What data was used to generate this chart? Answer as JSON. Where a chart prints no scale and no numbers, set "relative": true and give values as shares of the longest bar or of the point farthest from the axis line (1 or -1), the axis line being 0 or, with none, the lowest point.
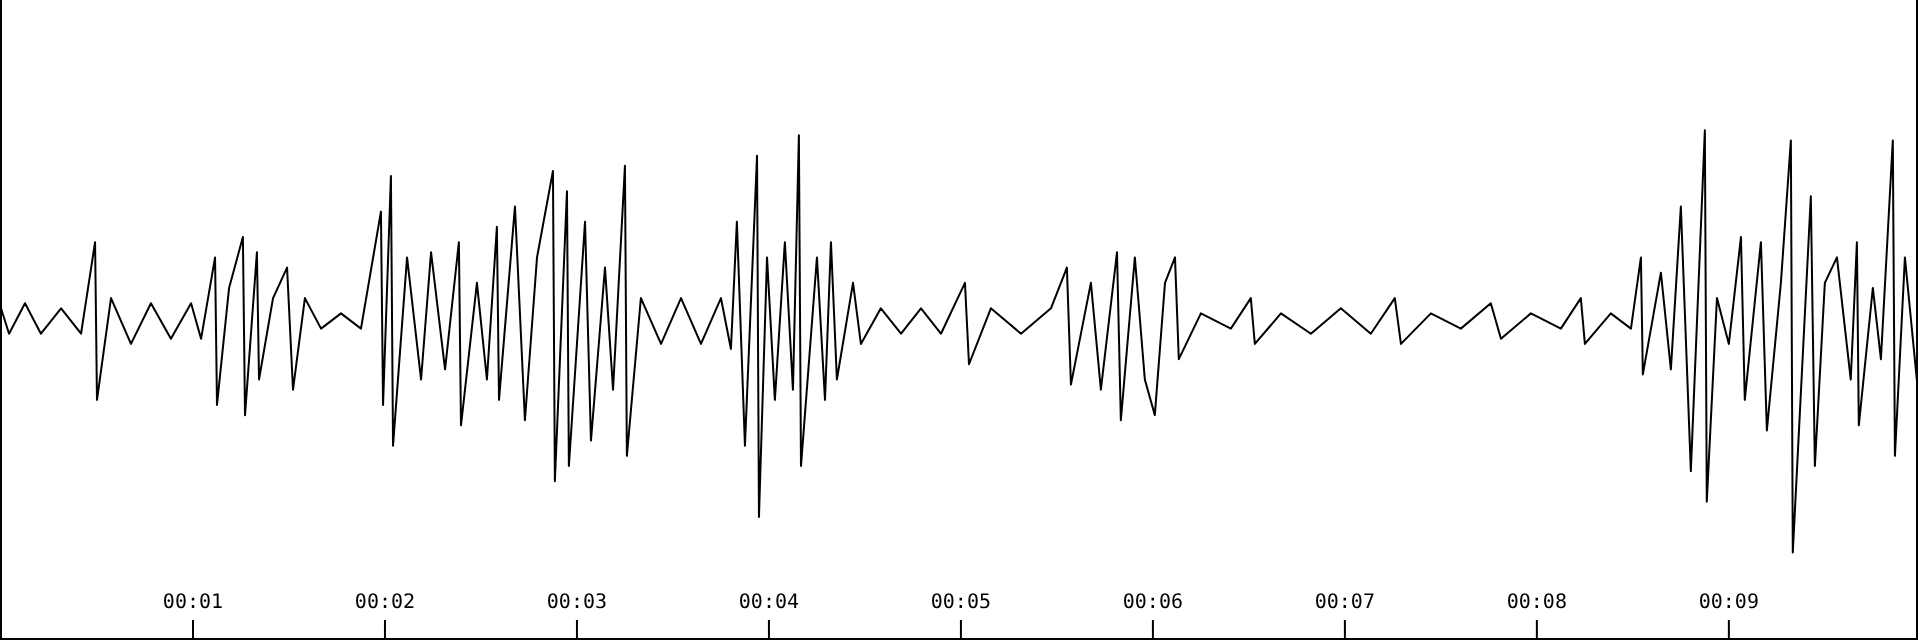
{
  "chart_data": {
    "type": "line",
    "relative": true,
    "grid": false,
    "marker": "none",
    "line_style": "solid",
    "xlim": [
      0,
      9.98
    ],
    "xticks": [
      {
        "value": 1,
        "label": "00:01"
      },
      {
        "value": 2,
        "label": "00:02"
      },
      {
        "value": 3,
        "label": "00:03"
      },
      {
        "value": 4,
        "label": "00:04"
      },
      {
        "value": 5,
        "label": "00:05"
      },
      {
        "value": 6,
        "label": "00:06"
      },
      {
        "value": 7,
        "label": "00:07"
      },
      {
        "value": 8,
        "label": "00:08"
      },
      {
        "value": 9,
        "label": "00:09"
      }
    ],
    "x": [
      0,
      0.042,
      0.125,
      0.208,
      0.313,
      0.417,
      0.49,
      0.5,
      0.573,
      0.677,
      0.781,
      0.885,
      0.99,
      1.042,
      1.115,
      1.125,
      1.188,
      1.26,
      1.271,
      1.333,
      1.344,
      1.417,
      1.49,
      1.521,
      1.583,
      1.667,
      1.771,
      1.875,
      1.979,
      1.99,
      2.031,
      2.042,
      2.115,
      2.188,
      2.24,
      2.313,
      2.385,
      2.396,
      2.479,
      2.531,
      2.583,
      2.594,
      2.677,
      2.729,
      2.792,
      2.875,
      2.885,
      2.948,
      2.958,
      3.042,
      3.073,
      3.146,
      3.188,
      3.25,
      3.26,
      3.333,
      3.438,
      3.542,
      3.646,
      3.75,
      3.802,
      3.833,
      3.875,
      3.938,
      3.948,
      3.99,
      4.031,
      4.083,
      4.125,
      4.156,
      4.167,
      4.25,
      4.292,
      4.323,
      4.354,
      4.438,
      4.479,
      4.583,
      4.688,
      4.792,
      4.896,
      5.021,
      5.042,
      5.156,
      5.313,
      5.469,
      5.552,
      5.573,
      5.677,
      5.729,
      5.813,
      5.833,
      5.906,
      5.958,
      6.01,
      6.063,
      6.115,
      6.135,
      6.25,
      6.406,
      6.51,
      6.531,
      6.667,
      6.823,
      6.979,
      7.135,
      7.26,
      7.292,
      7.448,
      7.604,
      7.76,
      7.813,
      7.969,
      8.125,
      8.229,
      8.25,
      8.385,
      8.49,
      8.542,
      8.552,
      8.646,
      8.698,
      8.75,
      8.802,
      8.875,
      8.885,
      8.938,
      9.0,
      9.063,
      9.083,
      9.167,
      9.198,
      9.271,
      9.323,
      9.333,
      9.427,
      9.448,
      9.5,
      9.563,
      9.635,
      9.667,
      9.677,
      9.75,
      9.792,
      9.854,
      9.865,
      9.917,
      9.979
    ],
    "series": [
      {
        "color": "#000000",
        "values": [
          0.65,
          0.6,
          0.66,
          0.6,
          0.65,
          0.6,
          0.78,
          0.47,
          0.67,
          0.58,
          0.66,
          0.59,
          0.66,
          0.59,
          0.75,
          0.46,
          0.69,
          0.79,
          0.44,
          0.76,
          0.51,
          0.67,
          0.73,
          0.49,
          0.67,
          0.61,
          0.64,
          0.61,
          0.84,
          0.46,
          0.91,
          0.38,
          0.75,
          0.51,
          0.76,
          0.53,
          0.78,
          0.42,
          0.7,
          0.51,
          0.81,
          0.47,
          0.85,
          0.43,
          0.75,
          0.92,
          0.31,
          0.88,
          0.34,
          0.82,
          0.39,
          0.73,
          0.49,
          0.93,
          0.36,
          0.67,
          0.58,
          0.67,
          0.58,
          0.67,
          0.57,
          0.82,
          0.38,
          0.95,
          0.24,
          0.75,
          0.47,
          0.78,
          0.49,
          0.99,
          0.34,
          0.75,
          0.47,
          0.78,
          0.51,
          0.7,
          0.58,
          0.65,
          0.6,
          0.65,
          0.6,
          0.7,
          0.54,
          0.65,
          0.6,
          0.65,
          0.73,
          0.5,
          0.7,
          0.49,
          0.76,
          0.43,
          0.75,
          0.51,
          0.44,
          0.7,
          0.75,
          0.55,
          0.64,
          0.61,
          0.67,
          0.58,
          0.64,
          0.6,
          0.65,
          0.6,
          0.67,
          0.58,
          0.64,
          0.61,
          0.66,
          0.59,
          0.64,
          0.61,
          0.67,
          0.58,
          0.64,
          0.61,
          0.75,
          0.52,
          0.72,
          0.53,
          0.85,
          0.33,
          1.0,
          0.27,
          0.67,
          0.58,
          0.79,
          0.47,
          0.78,
          0.41,
          0.7,
          0.98,
          0.17,
          0.87,
          0.34,
          0.7,
          0.75,
          0.51,
          0.78,
          0.42,
          0.69,
          0.55,
          0.98,
          0.36,
          0.75,
          0.51
        ]
      }
    ]
  }
}
